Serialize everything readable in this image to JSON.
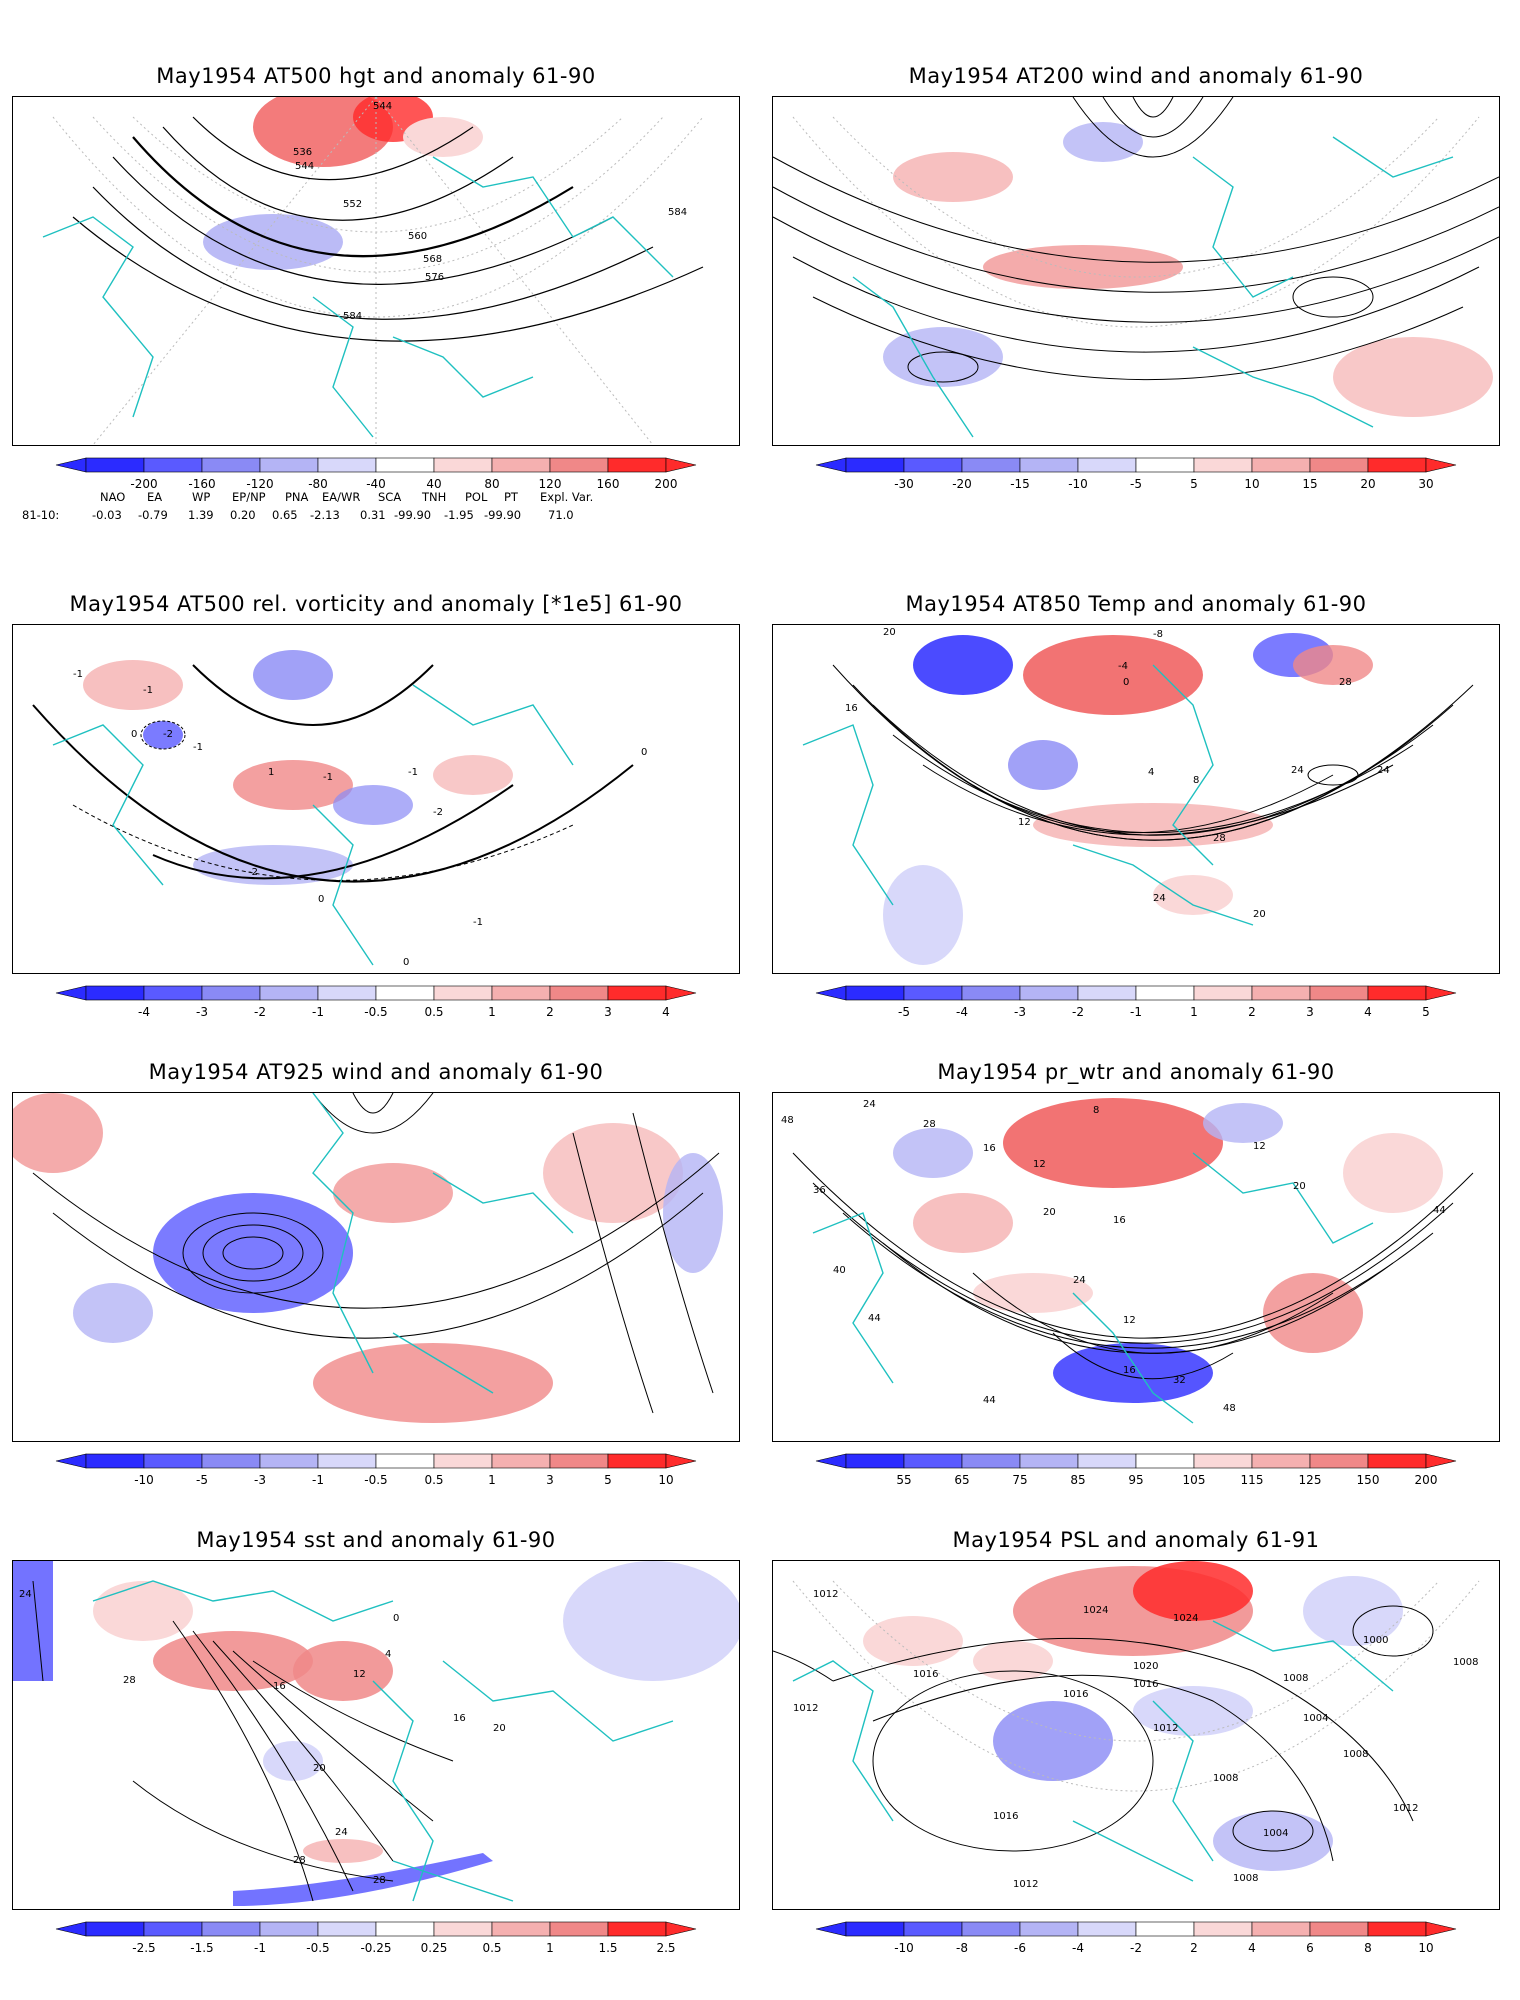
{
  "panels": [
    {
      "title": "May1954 AT500 hgt and anomaly 61-90",
      "colorbar": [
        "-200",
        "-160",
        "-120",
        "-80",
        "-40",
        "40",
        "80",
        "120",
        "160",
        "200"
      ],
      "contour_labels": [
        "536",
        "544",
        "544",
        "552",
        "560",
        "568",
        "576",
        "584",
        "584"
      ]
    },
    {
      "title": "May1954 AT200 wind and anomaly 61-90",
      "colorbar": [
        "-30",
        "-20",
        "-15",
        "-10",
        "-5",
        "5",
        "10",
        "15",
        "20",
        "30"
      ],
      "contour_labels": []
    },
    {
      "title": "May1954 AT500 rel. vorticity and anomaly [*1e5] 61-90",
      "colorbar": [
        "-4",
        "-3",
        "-2",
        "-1",
        "-0.5",
        "0.5",
        "1",
        "2",
        "3",
        "4"
      ],
      "contour_labels": [
        "-1",
        "-1",
        "-2",
        "-1",
        "-2",
        "-1",
        "-1",
        "-2",
        "0",
        "0",
        "0",
        "0",
        "-1",
        "1"
      ]
    },
    {
      "title": "May1954 AT850 Temp and anomaly 61-90",
      "colorbar": [
        "-5",
        "-4",
        "-3",
        "-2",
        "-1",
        "1",
        "2",
        "3",
        "4",
        "5"
      ],
      "contour_labels": [
        "-8",
        "-4",
        "0",
        "4",
        "8",
        "12",
        "16",
        "20",
        "24",
        "28",
        "28",
        "24",
        "24",
        "20"
      ]
    },
    {
      "title": "May1954 AT925 wind and anomaly 61-90",
      "colorbar": [
        "-10",
        "-5",
        "-3",
        "-1",
        "-0.5",
        "0.5",
        "1",
        "3",
        "5",
        "10"
      ],
      "contour_labels": []
    },
    {
      "title": "May1954 pr_wtr and anomaly 61-90",
      "colorbar": [
        "55",
        "65",
        "75",
        "85",
        "95",
        "105",
        "115",
        "125",
        "150",
        "200"
      ],
      "contour_labels": [
        "48",
        "24",
        "28",
        "16",
        "12",
        "16",
        "20",
        "24",
        "36",
        "40",
        "44",
        "44",
        "44",
        "48",
        "32",
        "16",
        "12",
        "8",
        "12",
        "20"
      ]
    },
    {
      "title": "May1954 sst and anomaly 61-90",
      "colorbar": [
        "-2.5",
        "-1.5",
        "-1",
        "-0.5",
        "-0.25",
        "0.25",
        "0.5",
        "1",
        "1.5",
        "2.5"
      ],
      "contour_labels": [
        "24",
        "28",
        "16",
        "12",
        "20",
        "24",
        "28",
        "28",
        "16",
        "20",
        "0",
        "4"
      ]
    },
    {
      "title": "May1954 PSL and anomaly 61-91",
      "colorbar": [
        "-10",
        "-8",
        "-6",
        "-4",
        "-2",
        "2",
        "4",
        "6",
        "8",
        "10"
      ],
      "contour_labels": [
        "1012",
        "1024",
        "1024",
        "1016",
        "1020",
        "1016",
        "1016",
        "1012",
        "1012",
        "1008",
        "1004",
        "1008",
        "1016",
        "1012",
        "1008",
        "1004",
        "1008",
        "1000",
        "1008",
        "1012"
      ]
    }
  ],
  "indices": {
    "headers": [
      "NAO",
      "EA",
      "WP",
      "EP/NP",
      "PNA",
      "EA/WR",
      "SCA",
      "TNH",
      "POL",
      "PT",
      "Expl. Var."
    ],
    "row_label": "81-10:",
    "values": [
      "-0.03",
      "-0.79",
      "1.39",
      "0.20",
      "0.65",
      "-2.13",
      "0.31",
      "-99.90",
      "-1.95",
      "-99.90",
      "71.0"
    ]
  },
  "colors": {
    "coastline": "#1fc0c0",
    "contour": "#000000",
    "neg_ramp": [
      "#2b2bff",
      "#5a5aff",
      "#8a8af5",
      "#b4b4f5",
      "#d8d8fa"
    ],
    "pos_ramp": [
      "#fad8d8",
      "#f5b0b0",
      "#f08888",
      "#f05a5a",
      "#ff2b2b"
    ]
  }
}
